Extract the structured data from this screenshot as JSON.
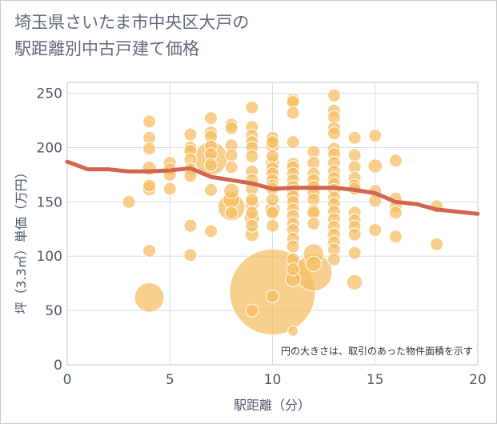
{
  "title_lines": [
    "埼玉県さいたま市中央区大戸の",
    "駅距離別中古戸建て価格"
  ],
  "colors": {
    "bubble": "#f5bc5f",
    "bubble_stroke": "#ffffff",
    "trend": "#d2654d",
    "grid": "#d9dee4",
    "frame": "#c9c9c9"
  },
  "chart_data": {
    "type": "scatter",
    "xlabel": "駅距離（分）",
    "ylabel": "坪（3.3㎡）単価（万円）",
    "xlim": [
      0,
      20
    ],
    "ylim": [
      0,
      260
    ],
    "xticks": [
      "0",
      "5",
      "10",
      "15",
      "20"
    ],
    "yticks": [
      "0",
      "50",
      "100",
      "150",
      "200",
      "250"
    ],
    "grid": true,
    "note": "円の大きさは、取引のあった物件面積を示す",
    "trend": {
      "x": [
        0,
        1,
        2,
        3,
        4,
        5,
        6,
        7,
        8,
        9,
        10,
        11,
        12,
        13,
        14,
        15,
        16,
        17,
        18,
        19,
        20
      ],
      "y": [
        187,
        180,
        180,
        178,
        178,
        179,
        181,
        173,
        170,
        167,
        162,
        163,
        163,
        163,
        161,
        158,
        150,
        148,
        143,
        141,
        139
      ]
    },
    "points": [
      {
        "x": 3,
        "y": 150,
        "s": 1
      },
      {
        "x": 4,
        "y": 224,
        "s": 1
      },
      {
        "x": 4,
        "y": 209,
        "s": 1
      },
      {
        "x": 4,
        "y": 199,
        "s": 1
      },
      {
        "x": 4,
        "y": 181,
        "s": 1.1
      },
      {
        "x": 4,
        "y": 165,
        "s": 1
      },
      {
        "x": 4,
        "y": 162,
        "s": 1.1
      },
      {
        "x": 4,
        "y": 105,
        "s": 1
      },
      {
        "x": 4,
        "y": 62,
        "s": 2.3
      },
      {
        "x": 5,
        "y": 186,
        "s": 1
      },
      {
        "x": 5,
        "y": 180,
        "s": 1
      },
      {
        "x": 5,
        "y": 175,
        "s": 1
      },
      {
        "x": 5,
        "y": 162,
        "s": 1
      },
      {
        "x": 6,
        "y": 212,
        "s": 1
      },
      {
        "x": 6,
        "y": 200,
        "s": 1
      },
      {
        "x": 6,
        "y": 197,
        "s": 1
      },
      {
        "x": 6,
        "y": 189,
        "s": 1
      },
      {
        "x": 6,
        "y": 180,
        "s": 1
      },
      {
        "x": 6,
        "y": 174,
        "s": 1
      },
      {
        "x": 6,
        "y": 128,
        "s": 1
      },
      {
        "x": 6,
        "y": 101,
        "s": 1
      },
      {
        "x": 7,
        "y": 227,
        "s": 1
      },
      {
        "x": 7,
        "y": 214,
        "s": 1
      },
      {
        "x": 7,
        "y": 210,
        "s": 1
      },
      {
        "x": 7,
        "y": 201,
        "s": 1
      },
      {
        "x": 7,
        "y": 194,
        "s": 1
      },
      {
        "x": 7,
        "y": 190,
        "s": 2.6
      },
      {
        "x": 7,
        "y": 184,
        "s": 1
      },
      {
        "x": 7,
        "y": 161,
        "s": 1
      },
      {
        "x": 7,
        "y": 123,
        "s": 1
      },
      {
        "x": 8,
        "y": 221,
        "s": 1
      },
      {
        "x": 8,
        "y": 218,
        "s": 1
      },
      {
        "x": 8,
        "y": 202,
        "s": 1
      },
      {
        "x": 8,
        "y": 193,
        "s": 1
      },
      {
        "x": 8,
        "y": 182,
        "s": 1
      },
      {
        "x": 8,
        "y": 160,
        "s": 1.2
      },
      {
        "x": 8,
        "y": 152,
        "s": 1.3
      },
      {
        "x": 8,
        "y": 145,
        "s": 2.1
      },
      {
        "x": 8,
        "y": 140,
        "s": 1
      },
      {
        "x": 9,
        "y": 237,
        "s": 1
      },
      {
        "x": 9,
        "y": 219,
        "s": 1
      },
      {
        "x": 9,
        "y": 211,
        "s": 1
      },
      {
        "x": 9,
        "y": 205,
        "s": 1
      },
      {
        "x": 9,
        "y": 200,
        "s": 1
      },
      {
        "x": 9,
        "y": 192,
        "s": 1
      },
      {
        "x": 9,
        "y": 178,
        "s": 1
      },
      {
        "x": 9,
        "y": 170,
        "s": 1
      },
      {
        "x": 9,
        "y": 162,
        "s": 1
      },
      {
        "x": 9,
        "y": 152,
        "s": 1
      },
      {
        "x": 9,
        "y": 148,
        "s": 1.1
      },
      {
        "x": 9,
        "y": 140,
        "s": 1
      },
      {
        "x": 9,
        "y": 135,
        "s": 1.2
      },
      {
        "x": 9,
        "y": 128,
        "s": 1
      },
      {
        "x": 9,
        "y": 120,
        "s": 1.1
      },
      {
        "x": 9,
        "y": 50,
        "s": 1
      },
      {
        "x": 10,
        "y": 209,
        "s": 1
      },
      {
        "x": 10,
        "y": 205,
        "s": 1
      },
      {
        "x": 10,
        "y": 202,
        "s": 1.1
      },
      {
        "x": 10,
        "y": 192,
        "s": 1
      },
      {
        "x": 10,
        "y": 186,
        "s": 1.1
      },
      {
        "x": 10,
        "y": 181,
        "s": 1
      },
      {
        "x": 10,
        "y": 176,
        "s": 1
      },
      {
        "x": 10,
        "y": 170,
        "s": 1
      },
      {
        "x": 10,
        "y": 165,
        "s": 1
      },
      {
        "x": 10,
        "y": 162,
        "s": 1
      },
      {
        "x": 10,
        "y": 152,
        "s": 1
      },
      {
        "x": 10,
        "y": 143,
        "s": 1.2
      },
      {
        "x": 10,
        "y": 140,
        "s": 1
      },
      {
        "x": 10,
        "y": 128,
        "s": 1
      },
      {
        "x": 10,
        "y": 67,
        "s": 6.7
      },
      {
        "x": 10,
        "y": 63,
        "s": 1
      },
      {
        "x": 11,
        "y": 244,
        "s": 1
      },
      {
        "x": 11,
        "y": 242,
        "s": 1
      },
      {
        "x": 11,
        "y": 232,
        "s": 1
      },
      {
        "x": 11,
        "y": 205,
        "s": 1
      },
      {
        "x": 11,
        "y": 185,
        "s": 1
      },
      {
        "x": 11,
        "y": 182,
        "s": 1
      },
      {
        "x": 11,
        "y": 176,
        "s": 1
      },
      {
        "x": 11,
        "y": 170,
        "s": 1
      },
      {
        "x": 11,
        "y": 164,
        "s": 1
      },
      {
        "x": 11,
        "y": 160,
        "s": 1
      },
      {
        "x": 11,
        "y": 155,
        "s": 1
      },
      {
        "x": 11,
        "y": 150,
        "s": 1
      },
      {
        "x": 11,
        "y": 143,
        "s": 1
      },
      {
        "x": 11,
        "y": 137,
        "s": 1
      },
      {
        "x": 11,
        "y": 130,
        "s": 1
      },
      {
        "x": 11,
        "y": 124,
        "s": 1
      },
      {
        "x": 11,
        "y": 116,
        "s": 1
      },
      {
        "x": 11,
        "y": 109,
        "s": 1
      },
      {
        "x": 11,
        "y": 97,
        "s": 1
      },
      {
        "x": 11,
        "y": 88,
        "s": 1
      },
      {
        "x": 11,
        "y": 79,
        "s": 1.2
      },
      {
        "x": 11,
        "y": 31,
        "s": 0.8
      },
      {
        "x": 12,
        "y": 196,
        "s": 1
      },
      {
        "x": 12,
        "y": 186,
        "s": 1
      },
      {
        "x": 12,
        "y": 176,
        "s": 1
      },
      {
        "x": 12,
        "y": 170,
        "s": 1
      },
      {
        "x": 12,
        "y": 164,
        "s": 1
      },
      {
        "x": 12,
        "y": 158,
        "s": 1
      },
      {
        "x": 12,
        "y": 152,
        "s": 1
      },
      {
        "x": 12,
        "y": 142,
        "s": 1
      },
      {
        "x": 12,
        "y": 140,
        "s": 1
      },
      {
        "x": 12,
        "y": 130,
        "s": 1
      },
      {
        "x": 12,
        "y": 102,
        "s": 1.6
      },
      {
        "x": 12,
        "y": 93,
        "s": 1.2
      },
      {
        "x": 12,
        "y": 85,
        "s": 2.9
      },
      {
        "x": 13,
        "y": 248,
        "s": 1
      },
      {
        "x": 13,
        "y": 234,
        "s": 1
      },
      {
        "x": 13,
        "y": 228,
        "s": 1
      },
      {
        "x": 13,
        "y": 218,
        "s": 1
      },
      {
        "x": 13,
        "y": 213,
        "s": 1
      },
      {
        "x": 13,
        "y": 199,
        "s": 1
      },
      {
        "x": 13,
        "y": 194,
        "s": 1
      },
      {
        "x": 13,
        "y": 186,
        "s": 1
      },
      {
        "x": 13,
        "y": 178,
        "s": 1
      },
      {
        "x": 13,
        "y": 172,
        "s": 1
      },
      {
        "x": 13,
        "y": 167,
        "s": 1
      },
      {
        "x": 13,
        "y": 161,
        "s": 1
      },
      {
        "x": 13,
        "y": 154,
        "s": 1
      },
      {
        "x": 13,
        "y": 148,
        "s": 1
      },
      {
        "x": 13,
        "y": 141,
        "s": 1
      },
      {
        "x": 13,
        "y": 134,
        "s": 1
      },
      {
        "x": 13,
        "y": 127,
        "s": 1
      },
      {
        "x": 13,
        "y": 120,
        "s": 1
      },
      {
        "x": 13,
        "y": 113,
        "s": 1
      },
      {
        "x": 13,
        "y": 106,
        "s": 1
      },
      {
        "x": 13,
        "y": 97,
        "s": 1
      },
      {
        "x": 14,
        "y": 209,
        "s": 1
      },
      {
        "x": 14,
        "y": 193,
        "s": 1
      },
      {
        "x": 14,
        "y": 182,
        "s": 1
      },
      {
        "x": 14,
        "y": 172,
        "s": 1
      },
      {
        "x": 14,
        "y": 165,
        "s": 1
      },
      {
        "x": 14,
        "y": 162,
        "s": 1
      },
      {
        "x": 14,
        "y": 140,
        "s": 1
      },
      {
        "x": 14,
        "y": 133,
        "s": 1
      },
      {
        "x": 14,
        "y": 127,
        "s": 1
      },
      {
        "x": 14,
        "y": 120,
        "s": 1
      },
      {
        "x": 14,
        "y": 103,
        "s": 1
      },
      {
        "x": 14,
        "y": 76,
        "s": 1.2
      },
      {
        "x": 15,
        "y": 211,
        "s": 1
      },
      {
        "x": 15,
        "y": 183,
        "s": 1.1
      },
      {
        "x": 15,
        "y": 160,
        "s": 1
      },
      {
        "x": 15,
        "y": 151,
        "s": 1
      },
      {
        "x": 15,
        "y": 124,
        "s": 1
      },
      {
        "x": 16,
        "y": 188,
        "s": 1
      },
      {
        "x": 16,
        "y": 153,
        "s": 1
      },
      {
        "x": 16,
        "y": 146,
        "s": 1
      },
      {
        "x": 16,
        "y": 140,
        "s": 1
      },
      {
        "x": 16,
        "y": 118,
        "s": 1
      },
      {
        "x": 18,
        "y": 146,
        "s": 1
      },
      {
        "x": 18,
        "y": 111,
        "s": 1
      }
    ]
  }
}
